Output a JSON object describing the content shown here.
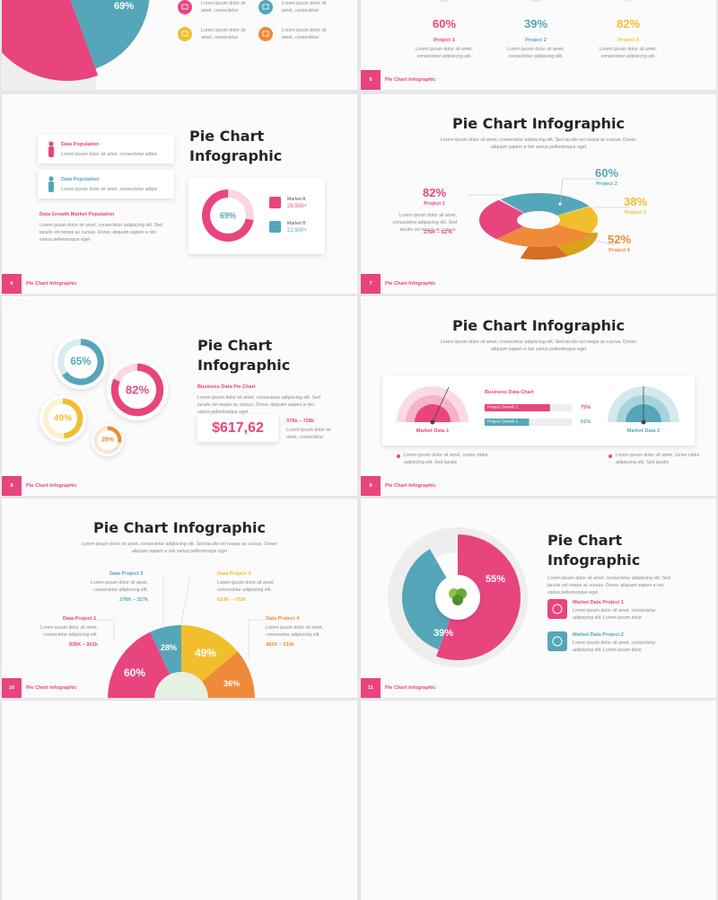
{
  "slides": [
    {
      "pie_label": "69%",
      "items": [
        "Lorem ipsum dolor sit amet, consectetur",
        "Lorem ipsum dolor sit amet, consectetur",
        "Lorem ipsum dolor sit amet, consectetur",
        "Lorem ipsum dolor sit amet, consectetur"
      ]
    },
    {
      "number": "5",
      "footer": "Pie Chart Infographic",
      "projects": [
        {
          "value": "60%",
          "name": "Project 1",
          "text": "Lorem ipsum dolor sit amet, consectetur adipiscing elit."
        },
        {
          "value": "39%",
          "name": "Project 2",
          "text": "Lorem ipsum dolor sit amet, consectetur adipiscing elit."
        },
        {
          "value": "82%",
          "name": "Project 3",
          "text": "Lorem ipsum dolor sit amet, consectetur adipiscing elit."
        }
      ]
    },
    {
      "number": "6",
      "footer": "Pie Chart Infographic",
      "title": "Pie Chart Infographic",
      "cards": [
        {
          "title": "Data Population",
          "text": "Lorem ipsum dolor sit amet, consectetur adipis"
        },
        {
          "title": "Data Population",
          "text": "Lorem ipsum dolor sit amet, consectetur adipis"
        }
      ],
      "subtitle": "Data Growth Market Population",
      "text": "Lorem ipsum dolor sit amet, consectetur adipiscing elit. Sed iaculis vel neque ac cursus. Donec aliquam sapien a nisi varius pellentesque eget",
      "donut_label": "69%",
      "markets": [
        {
          "name": "Market A",
          "value": "29,500+"
        },
        {
          "name": "Market B",
          "value": "22,500+"
        }
      ]
    },
    {
      "number": "7",
      "footer": "Pie Chart Infographic",
      "title": "Pie Chart Infographic",
      "subtitle": "Lorem ipsum dolor sit amet, consectetur adipiscing elit. Sed iaculis vel neque ac cursus. Donec aliquam sapien a nisi varius pellentesque eget",
      "projects": [
        {
          "value": "82%",
          "name": "Project 1"
        },
        {
          "value": "60%",
          "name": "Project 2"
        },
        {
          "value": "38%",
          "name": "Project 3"
        },
        {
          "value": "52%",
          "name": "Project 4"
        }
      ],
      "text": "Lorem ipsum dolor sit amet, consectetur adipiscing elit. Sed iaculis vel neque ac cursus.",
      "range": "276K – 627k"
    },
    {
      "number": "8",
      "footer": "Pie Chart Infographic",
      "circles": [
        "65%",
        "82%",
        "49%",
        "28%"
      ],
      "title": "Pie Chart Infographic",
      "heading": "Business Data Pie Chart",
      "text": "Lorem ipsum dolor sit amet, consectetur adipiscing elit. Sed iaculis vel neque ac cursus. Donec aliquam sapien a nisi varius pellentesque eget",
      "amount": "$617,62",
      "range": "378k – 728k",
      "note": "Lorem ipsum dolor sit amet, consectetur"
    },
    {
      "number": "9",
      "footer": "Pie Chart Infographic",
      "title": "Pie Chart Infographic",
      "subtitle": "Lorem ipsum dolor sit amet, consectetur adipiscing elit. Sed iaculis vel neque ac cursus. Donec aliquam sapien a nisi varius pellentesque eget",
      "markets": [
        "Market Data 1",
        "Market Data 2"
      ],
      "chart_title": "Business Data Chart",
      "bars": [
        {
          "name": "Project Growth 1",
          "value": "75%"
        },
        {
          "name": "Project Growth 2",
          "value": "51%"
        }
      ],
      "notes": [
        "Lorem ipsum dolor sit amet, conse ctetur adipiscing elit. Sed iaculis",
        "Lorem ipsum dolor sit amet, conse ctetur adipiscing elit. Sed iaculis"
      ]
    },
    {
      "number": "10",
      "footer": "Pie Chart Infographic",
      "title": "Pie Chart Infographic",
      "subtitle": "Lorem ipsum dolor sit amet, consectetur adipiscing elit. Sed iaculis vel neque ac cursus. Donec aliquam sapien a nisi varius pellentesque eget",
      "projects": [
        {
          "name": "Data Project 1",
          "text": "Lorem ipsum dolor sit amet, consectetur adipiscing elit.",
          "range": "835K – 901k"
        },
        {
          "name": "Data Project 2",
          "text": "Lorem ipsum dolor sit amet, consectetur adipiscing elit.",
          "range": "276K – 327k"
        },
        {
          "name": "Data Project 3",
          "text": "Lorem ipsum dolor sit amet, consectetur adipiscing elit.",
          "range": "629K – 792k"
        },
        {
          "name": "Data Project 4",
          "text": "Lorem ipsum dolor sit amet, consectetur adipiscing elit.",
          "range": "482K – 516k"
        }
      ],
      "pie_labels": [
        "60%",
        "28%",
        "49%",
        "36%"
      ]
    },
    {
      "number": "11",
      "footer": "Pie Chart Infographic",
      "title": "Pie Chart Infographic",
      "text": "Lorem ipsum dolor sit amet, consectetur adipiscing elit. Sed iaculis vel neque ac cursus. Donec aliquam sapien a nisi varius pellentesque eget",
      "pie_labels": [
        "55%",
        "39%"
      ],
      "items": [
        {
          "name": "Market Data Project 1",
          "text": "Lorem ipsum dolor sit amet, consectetur adipiscing elit. Lorem ipsum dolor"
        },
        {
          "name": "Market Data Project 2",
          "text": "Lorem ipsum dolor sit amet, consectetur adipiscing elit. Lorem ipsum dolor"
        }
      ]
    }
  ]
}
